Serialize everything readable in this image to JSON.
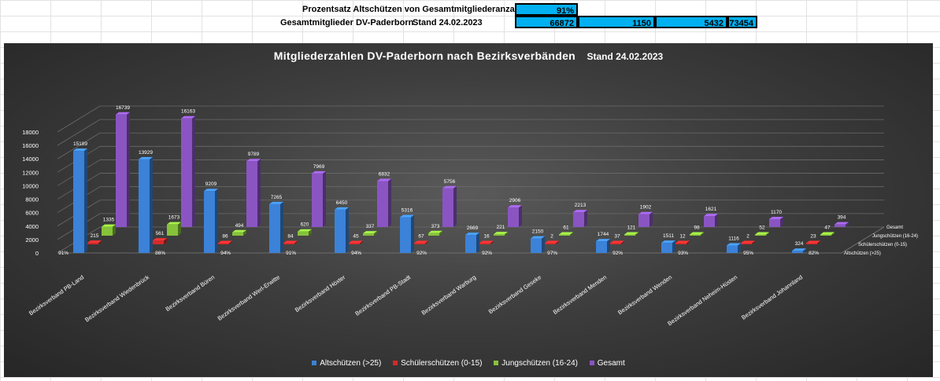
{
  "spreadsheet": {
    "row1_label": "Prozentsatz Altschützen von Gesamtmitgliederanzahl",
    "row1_value": "91%",
    "row2_label": "Gesamtmitglieder DV-Paderborn",
    "row2_date": "Stand 24.02.2023",
    "row2_values": [
      "66872",
      "1150",
      "5432",
      "73454"
    ]
  },
  "colors": {
    "altschuetzen": "#3b82d8",
    "schuelerschuetzen": "#d42a2a",
    "jungschuetzen": "#86c23a",
    "gesamt": "#8a55c2",
    "highlight_cell": "#00b0f0"
  },
  "chart_data": {
    "type": "bar",
    "title": "Mitgliederzahlen DV-Paderborn nach Bezirksverbänden",
    "subtitle": "Stand 24.02.2023",
    "categories": [
      "Bezirksverband PB-Land",
      "Bezirksverband Wiedenbrück",
      "Bezirksverband Büren",
      "Bezirksverband Werl-Erwitte",
      "Bezirksverband Höxter",
      "Bezirksverband PB-Stadt",
      "Bezirksverband Warburg",
      "Bezirksverband Geseke",
      "Bezirksverband Menden",
      "Bezirksverband Wenden",
      "Bezirksverband Neheim-Hüsten",
      "Bezirksverband Johannland"
    ],
    "series": [
      {
        "name": "Altschützen (>25)",
        "values": [
          15189,
          13929,
          9209,
          7265,
          6450,
          5316,
          2669,
          2150,
          1744,
          1511,
          1116,
          324
        ],
        "percent_labels": [
          "91%",
          "86%",
          "94%",
          "91%",
          "94%",
          "92%",
          "92%",
          "97%",
          "92%",
          "93%",
          "95%",
          "82%"
        ]
      },
      {
        "name": "Schülerschützen (0-15)",
        "values": [
          215,
          561,
          86,
          84,
          45,
          67,
          16,
          2,
          37,
          12,
          2,
          23
        ]
      },
      {
        "name": "Jungschützen (16-24)",
        "values": [
          1335,
          1673,
          494,
          620,
          337,
          373,
          221,
          61,
          121,
          98,
          52,
          47
        ]
      },
      {
        "name": "Gesamt",
        "values": [
          16739,
          16163,
          9789,
          7969,
          6832,
          5756,
          2906,
          2213,
          1902,
          1621,
          1170,
          394
        ]
      }
    ],
    "depth_axis_labels": [
      "Gesamt",
      "Jungschützen (16-24)",
      "Schülerschützen (0-15)",
      "Altschützen (>25)"
    ],
    "y_ticks": [
      "0",
      "2000",
      "4000",
      "6000",
      "8000",
      "10000",
      "12000",
      "14000",
      "16000",
      "18000"
    ],
    "ylim": [
      0,
      18000
    ],
    "legend_position": "bottom",
    "grid": true
  }
}
